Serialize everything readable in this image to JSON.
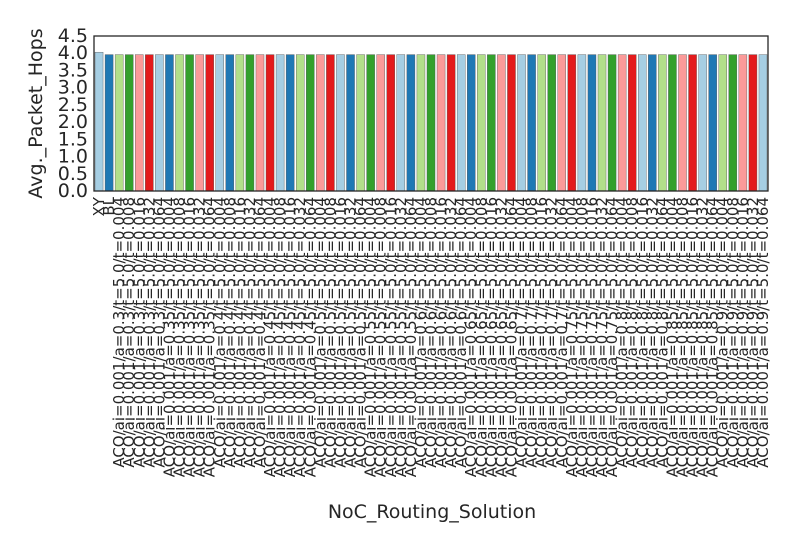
{
  "chart_data": {
    "type": "bar",
    "title": "",
    "xlabel": "NoC_Routing_Solution",
    "ylabel": "Avg._Packet_Hops",
    "ylim": [
      0,
      4.5
    ],
    "yticks": [
      "0.0",
      "0.5",
      "1.0",
      "1.5",
      "2.0",
      "2.5",
      "3.0",
      "3.5",
      "4.0",
      "4.5"
    ],
    "grid": false,
    "legend": "none",
    "categories": [
      "XY",
      "BL",
      "ACO/ai=0.001/a=0.3/t=5.0/t=0.004",
      "ACO/ai=0.001/a=0.3/t=5.0/t=0.008",
      "ACO/ai=0.001/a=0.3/t=5.0/t=0.016",
      "ACO/ai=0.001/a=0.3/t=5.0/t=0.032",
      "ACO/ai=0.001/a=0.3/t=5.0/t=0.064",
      "ACO/ai=0.001/a=0.35/t=5.0/t=0.004",
      "ACO/ai=0.001/a=0.35/t=5.0/t=0.008",
      "ACO/ai=0.001/a=0.35/t=5.0/t=0.016",
      "ACO/ai=0.001/a=0.35/t=5.0/t=0.032",
      "ACO/ai=0.001/a=0.35/t=5.0/t=0.064",
      "ACO/ai=0.001/a=0.4/t=5.0/t=0.004",
      "ACO/ai=0.001/a=0.4/t=5.0/t=0.008",
      "ACO/ai=0.001/a=0.4/t=5.0/t=0.016",
      "ACO/ai=0.001/a=0.4/t=5.0/t=0.032",
      "ACO/ai=0.001/a=0.4/t=5.0/t=0.064",
      "ACO/ai=0.001/a=0.45/t=5.0/t=0.004",
      "ACO/ai=0.001/a=0.45/t=5.0/t=0.008",
      "ACO/ai=0.001/a=0.45/t=5.0/t=0.016",
      "ACO/ai=0.001/a=0.45/t=5.0/t=0.032",
      "ACO/ai=0.001/a=0.45/t=5.0/t=0.064",
      "ACO/ai=0.001/a=0.5/t=5.0/t=0.004",
      "ACO/ai=0.001/a=0.5/t=5.0/t=0.008",
      "ACO/ai=0.001/a=0.5/t=5.0/t=0.016",
      "ACO/ai=0.001/a=0.5/t=5.0/t=0.032",
      "ACO/ai=0.001/a=0.5/t=5.0/t=0.064",
      "ACO/ai=0.001/a=0.55/t=5.0/t=0.004",
      "ACO/ai=0.001/a=0.55/t=5.0/t=0.008",
      "ACO/ai=0.001/a=0.55/t=5.0/t=0.016",
      "ACO/ai=0.001/a=0.55/t=5.0/t=0.032",
      "ACO/ai=0.001/a=0.55/t=5.0/t=0.064",
      "ACO/ai=0.001/a=0.6/t=5.0/t=0.004",
      "ACO/ai=0.001/a=0.6/t=5.0/t=0.008",
      "ACO/ai=0.001/a=0.6/t=5.0/t=0.016",
      "ACO/ai=0.001/a=0.6/t=5.0/t=0.032",
      "ACO/ai=0.001/a=0.6/t=5.0/t=0.064",
      "ACO/ai=0.001/a=0.65/t=5.0/t=0.004",
      "ACO/ai=0.001/a=0.65/t=5.0/t=0.008",
      "ACO/ai=0.001/a=0.65/t=5.0/t=0.016",
      "ACO/ai=0.001/a=0.65/t=5.0/t=0.032",
      "ACO/ai=0.001/a=0.65/t=5.0/t=0.064",
      "ACO/ai=0.001/a=0.7/t=5.0/t=0.004",
      "ACO/ai=0.001/a=0.7/t=5.0/t=0.008",
      "ACO/ai=0.001/a=0.7/t=5.0/t=0.016",
      "ACO/ai=0.001/a=0.7/t=5.0/t=0.032",
      "ACO/ai=0.001/a=0.7/t=5.0/t=0.064",
      "ACO/ai=0.001/a=0.75/t=5.0/t=0.004",
      "ACO/ai=0.001/a=0.75/t=5.0/t=0.008",
      "ACO/ai=0.001/a=0.75/t=5.0/t=0.016",
      "ACO/ai=0.001/a=0.75/t=5.0/t=0.032",
      "ACO/ai=0.001/a=0.75/t=5.0/t=0.064",
      "ACO/ai=0.001/a=0.8/t=5.0/t=0.004",
      "ACO/ai=0.001/a=0.8/t=5.0/t=0.008",
      "ACO/ai=0.001/a=0.8/t=5.0/t=0.016",
      "ACO/ai=0.001/a=0.8/t=5.0/t=0.032",
      "ACO/ai=0.001/a=0.8/t=5.0/t=0.064",
      "ACO/ai=0.001/a=0.85/t=5.0/t=0.004",
      "ACO/ai=0.001/a=0.85/t=5.0/t=0.008",
      "ACO/ai=0.001/a=0.85/t=5.0/t=0.016",
      "ACO/ai=0.001/a=0.85/t=5.0/t=0.032",
      "ACO/ai=0.001/a=0.85/t=5.0/t=0.064",
      "ACO/ai=0.001/a=0.9/t=5.0/t=0.004",
      "ACO/ai=0.001/a=0.9/t=5.0/t=0.008",
      "ACO/ai=0.001/a=0.9/t=5.0/t=0.016",
      "ACO/ai=0.001/a=0.9/t=5.0/t=0.032",
      "ACO/ai=0.001/a=0.9/t=5.0/t=0.064"
    ],
    "values": [
      4.03,
      3.96,
      3.96,
      3.96,
      3.96,
      3.96,
      3.96,
      3.96,
      3.96,
      3.96,
      3.96,
      3.96,
      3.96,
      3.96,
      3.96,
      3.96,
      3.96,
      3.96,
      3.96,
      3.96,
      3.96,
      3.96,
      3.96,
      3.96,
      3.96,
      3.96,
      3.96,
      3.96,
      3.96,
      3.96,
      3.96,
      3.96,
      3.96,
      3.96,
      3.96,
      3.96,
      3.96,
      3.96,
      3.96,
      3.96,
      3.96,
      3.96,
      3.96,
      3.96,
      3.96,
      3.96,
      3.96,
      3.96,
      3.96,
      3.96,
      3.96,
      3.96,
      3.96,
      3.96,
      3.96,
      3.96,
      3.96,
      3.96,
      3.96,
      3.96,
      3.96,
      3.96,
      3.96,
      3.96,
      3.96,
      3.96,
      3.96
    ],
    "colors": [
      "#a6cee3",
      "#1f78b4",
      "#b2df8a",
      "#33a02c",
      "#fb9a99",
      "#e31a1c"
    ],
    "edge_color": "#555555"
  }
}
